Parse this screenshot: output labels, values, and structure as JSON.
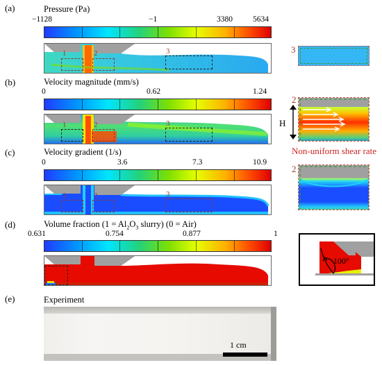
{
  "panels": {
    "a": {
      "label": "(a)",
      "title": "Pressure (Pa)",
      "ticks": [
        "−1128",
        "−1",
        "3380",
        "5634"
      ],
      "regions": [
        "1",
        "2",
        "3"
      ],
      "side_region": "3"
    },
    "b": {
      "label": "(b)",
      "title": "Velocity magnitude (mm/s)",
      "ticks": [
        "0",
        "0.62",
        "1.24"
      ],
      "regions": [
        "1",
        "2",
        "3"
      ],
      "side_region": "2",
      "height_symbol": "H",
      "annotation": "Non-uniform shear rate"
    },
    "c": {
      "label": "(c)",
      "title": "Velocity gradient (1/s)",
      "ticks": [
        "0",
        "3.6",
        "7.3",
        "10.9"
      ],
      "regions": [
        "1",
        "2",
        "3"
      ],
      "side_region": "2"
    },
    "d": {
      "label": "(d)",
      "title_pre": "Volume fraction (1 = Al",
      "title_sub1": "2",
      "title_mid": "O",
      "title_sub2": "3",
      "title_post": " slurry) (0 = Air)",
      "ticks": [
        "0.631",
        "0.754",
        "0.877",
        "1"
      ],
      "angle": "100°"
    },
    "e": {
      "label": "(e)",
      "title": "Experiment",
      "scale": "1 cm"
    }
  },
  "colors": {
    "brown_dash": "#8b3a2a",
    "green_dash": "#3b9a3b",
    "red_text": "#cc2222"
  }
}
